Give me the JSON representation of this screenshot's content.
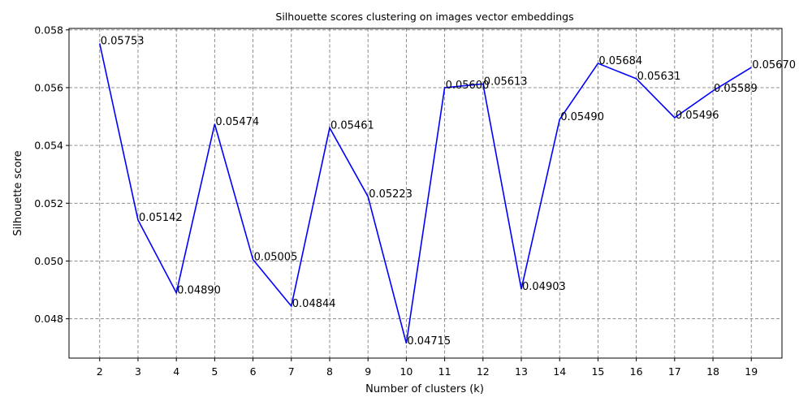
{
  "chart_data": {
    "type": "line",
    "title": "Silhouette scores clustering on images vector embeddings",
    "xlabel": "Number of clusters (k)",
    "ylabel": "Silhouette score",
    "x": [
      2,
      3,
      4,
      5,
      6,
      7,
      8,
      9,
      10,
      11,
      12,
      13,
      14,
      15,
      16,
      17,
      18,
      19
    ],
    "series": [
      {
        "values": [
          0.05753,
          0.05142,
          0.0489,
          0.05474,
          0.05005,
          0.04844,
          0.05461,
          0.05223,
          0.04715,
          0.056,
          0.05613,
          0.04903,
          0.0549,
          0.05684,
          0.05631,
          0.05496,
          0.05589,
          0.0567
        ],
        "labels": [
          "0.05753",
          "0.05142",
          "0.04890",
          "0.05474",
          "0.05005",
          "0.04844",
          "0.05461",
          "0.05223",
          "0.04715",
          "0.05600",
          "0.05613",
          "0.04903",
          "0.05490",
          "0.05684",
          "0.05631",
          "0.05496",
          "0.05589",
          "0.05670"
        ],
        "color": "#0000ff"
      }
    ],
    "yticks": [
      "0.048",
      "0.050",
      "0.052",
      "0.054",
      "0.056",
      "0.058"
    ],
    "xlim": [
      1.2,
      19.8
    ],
    "ylim": [
      0.04664,
      0.05805
    ],
    "grid": true
  }
}
